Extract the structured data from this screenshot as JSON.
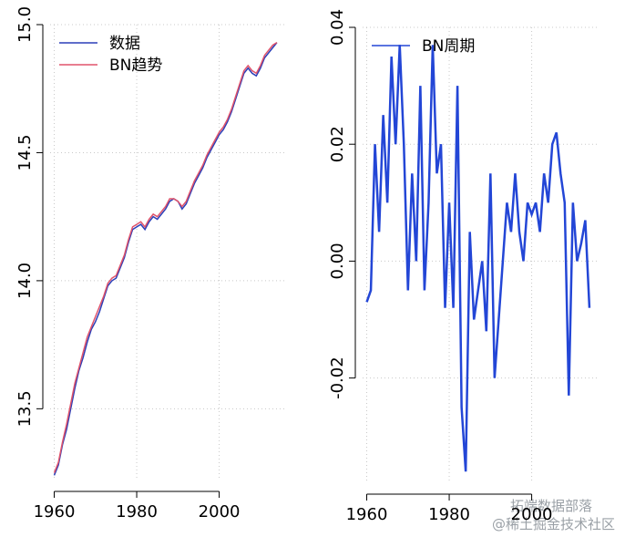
{
  "chart_data": [
    {
      "type": "line",
      "x": [
        1960,
        1961,
        1962,
        1963,
        1964,
        1965,
        1966,
        1967,
        1968,
        1969,
        1970,
        1971,
        1972,
        1973,
        1974,
        1975,
        1976,
        1977,
        1978,
        1979,
        1980,
        1981,
        1982,
        1983,
        1984,
        1985,
        1986,
        1987,
        1988,
        1989,
        1990,
        1991,
        1992,
        1993,
        1994,
        1995,
        1996,
        1997,
        1998,
        1999,
        2000,
        2001,
        2002,
        2003,
        2004,
        2005,
        2006,
        2007,
        2008,
        2009,
        2010,
        2011,
        2012,
        2013,
        2014
      ],
      "series": [
        {
          "name": "数据",
          "color": "#2b3fb8",
          "values": [
            13.24,
            13.28,
            13.36,
            13.42,
            13.5,
            13.58,
            13.65,
            13.7,
            13.76,
            13.81,
            13.84,
            13.88,
            13.93,
            13.98,
            14.0,
            14.01,
            14.05,
            14.09,
            14.15,
            14.2,
            14.21,
            14.22,
            14.2,
            14.23,
            14.25,
            14.24,
            14.26,
            14.28,
            14.31,
            14.32,
            14.31,
            14.28,
            14.3,
            14.34,
            14.38,
            14.41,
            14.44,
            14.48,
            14.51,
            14.54,
            14.57,
            14.59,
            14.62,
            14.66,
            14.71,
            14.76,
            14.81,
            14.83,
            14.81,
            14.8,
            14.83,
            14.87,
            14.89,
            14.91,
            14.93
          ]
        },
        {
          "name": "BN趋势",
          "color": "#e0536b",
          "values": [
            13.25,
            13.29,
            13.37,
            13.44,
            13.52,
            13.6,
            13.66,
            13.72,
            13.78,
            13.82,
            13.86,
            13.9,
            13.94,
            13.99,
            14.01,
            14.02,
            14.06,
            14.1,
            14.16,
            14.21,
            14.22,
            14.23,
            14.21,
            14.24,
            14.26,
            14.25,
            14.27,
            14.29,
            14.32,
            14.32,
            14.31,
            14.29,
            14.31,
            14.35,
            14.39,
            14.42,
            14.45,
            14.49,
            14.52,
            14.55,
            14.58,
            14.6,
            14.63,
            14.67,
            14.72,
            14.77,
            14.82,
            14.84,
            14.82,
            14.81,
            14.84,
            14.88,
            14.9,
            14.92,
            14.93
          ]
        }
      ],
      "xlim": [
        1959,
        2016
      ],
      "xticks": [
        1960,
        1980,
        2000
      ],
      "ylim": [
        13.22,
        15.0
      ],
      "yticks": [
        13.5,
        {
          "value": 14,
          "label": "14.0"
        },
        14.5,
        {
          "value": 15,
          "label": "15.0"
        }
      ],
      "grid": true,
      "legend": "top-left"
    },
    {
      "type": "line",
      "x": [
        1960,
        1961,
        1962,
        1963,
        1964,
        1965,
        1966,
        1967,
        1968,
        1969,
        1970,
        1971,
        1972,
        1973,
        1974,
        1975,
        1976,
        1977,
        1978,
        1979,
        1980,
        1981,
        1982,
        1983,
        1984,
        1985,
        1986,
        1987,
        1988,
        1989,
        1990,
        1991,
        1992,
        1993,
        1994,
        1995,
        1996,
        1997,
        1998,
        1999,
        2000,
        2001,
        2002,
        2003,
        2004,
        2005,
        2006,
        2007,
        2008,
        2009,
        2010,
        2011,
        2012,
        2013,
        2014
      ],
      "series": [
        {
          "name": "BN周期",
          "color": "#2346d6",
          "values": [
            -0.007,
            -0.005,
            0.02,
            0.005,
            0.025,
            0.01,
            0.035,
            0.02,
            0.037,
            0.02,
            -0.005,
            0.015,
            0.0,
            0.03,
            -0.005,
            0.01,
            0.037,
            0.015,
            0.02,
            -0.008,
            0.01,
            -0.008,
            0.03,
            -0.025,
            -0.036,
            0.005,
            -0.01,
            -0.005,
            0.0,
            -0.012,
            0.015,
            -0.02,
            -0.01,
            0.0,
            0.01,
            0.005,
            0.015,
            0.005,
            0.0,
            0.01,
            0.008,
            0.01,
            0.005,
            0.015,
            0.01,
            0.02,
            0.022,
            0.015,
            0.01,
            -0.023,
            0.01,
            0.0,
            0.003,
            0.007,
            -0.008
          ]
        }
      ],
      "xlim": [
        1959,
        2016
      ],
      "xticks": [
        1960,
        1980,
        2000
      ],
      "ylim": [
        -0.038,
        0.04
      ],
      "yticks": [
        -0.02,
        {
          "value": 0,
          "label": "0.00"
        },
        0.02,
        0.04
      ],
      "grid": true,
      "legend": "top-left"
    }
  ],
  "watermark": [
    "拓端数据部落",
    "@稀土掘金技术社区"
  ]
}
